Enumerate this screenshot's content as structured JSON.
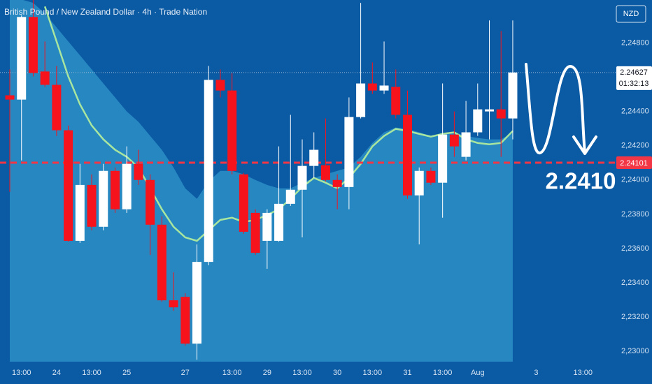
{
  "chart_data": {
    "type": "candlestick",
    "title": "British Pound / New Zealand Dollar · 4h · Trade Nation",
    "currency": "NZD",
    "categories": [
      null,
      "13:00",
      null,
      null,
      "24",
      null,
      null,
      "13:00",
      null,
      null,
      "25",
      null,
      null,
      null,
      null,
      "27",
      null,
      null,
      null,
      "13:00",
      null,
      null,
      "29",
      null,
      null,
      "13:00",
      null,
      null,
      "30",
      null,
      null,
      "13:00",
      null,
      null,
      "31",
      null,
      null,
      "13:00",
      null,
      null,
      "Aug",
      null,
      null,
      null,
      null,
      "3",
      null,
      null,
      null,
      "13:00",
      null,
      null
    ],
    "open": [
      2.24494,
      2.24469,
      2.24951,
      2.24633,
      2.24555,
      2.2429,
      2.23645,
      2.23971,
      2.23727,
      2.24053,
      2.23829,
      2.24094,
      2.24,
      2.23739,
      2.23298,
      2.23318,
      2.23045,
      2.23522,
      2.24584,
      2.24522,
      2.24033,
      2.23808,
      2.23645,
      2.23645,
      2.23861,
      2.23943,
      2.24082,
      2.24086,
      2.24,
      2.23959,
      2.24367,
      2.24563,
      2.24522,
      2.24543,
      2.2438,
      2.2391,
      2.24053,
      2.23984,
      2.24265,
      2.24135,
      2.24278,
      2.244,
      2.24412,
      2.24359,
      null,
      null,
      null,
      null,
      null,
      null,
      null,
      null
    ],
    "high": [
      2.24645,
      2.2496,
      2.25053,
      2.24808,
      2.24665,
      2.24318,
      2.24094,
      2.24033,
      2.24094,
      2.24073,
      2.24196,
      2.24176,
      2.24033,
      2.23788,
      2.23461,
      2.23339,
      2.23624,
      2.24665,
      2.24645,
      2.24624,
      2.24041,
      2.23829,
      2.23829,
      2.24196,
      2.2438,
      2.24237,
      2.24278,
      2.24359,
      2.24033,
      2.24482,
      2.25033,
      2.24686,
      2.24808,
      2.24645,
      2.24522,
      2.24073,
      2.24073,
      2.24563,
      2.244,
      2.24461,
      2.24563,
      2.24931,
      2.24869,
      2.24931,
      null,
      null,
      null,
      null,
      null,
      null,
      null,
      null
    ],
    "low": [
      2.23931,
      2.24114,
      2.24604,
      2.24543,
      2.24257,
      2.2364,
      2.23633,
      2.23706,
      2.23706,
      2.23808,
      2.23808,
      2.23971,
      2.23563,
      2.2329,
      2.23237,
      2.23033,
      2.22951,
      2.23502,
      2.24482,
      2.24033,
      2.23686,
      2.23563,
      2.23482,
      2.2364,
      2.23849,
      2.23665,
      2.24012,
      2.23992,
      2.23829,
      2.23829,
      2.24359,
      2.24502,
      2.24502,
      2.24359,
      2.2389,
      2.23624,
      2.23971,
      2.2378,
      2.24135,
      2.24114,
      2.24257,
      2.24237,
      2.24135,
      2.24237,
      null,
      null,
      null,
      null,
      null,
      null,
      null,
      null
    ],
    "close": [
      2.24469,
      2.24951,
      2.24624,
      2.24555,
      2.2429,
      2.23645,
      2.23971,
      2.23727,
      2.24053,
      2.23829,
      2.24094,
      2.24,
      2.23739,
      2.23298,
      2.23257,
      2.23045,
      2.23522,
      2.24584,
      2.24522,
      2.24053,
      2.23698,
      2.23575,
      2.23808,
      2.23861,
      2.23943,
      2.24082,
      2.24176,
      2.24,
      2.23959,
      2.24367,
      2.24563,
      2.24522,
      2.24551,
      2.2438,
      2.2391,
      2.24053,
      2.23984,
      2.24265,
      2.24196,
      2.24278,
      2.24412,
      2.24412,
      2.24359,
      2.24627,
      null,
      null,
      null,
      null,
      null,
      null,
      null,
      null
    ],
    "up_color": "#ffffff",
    "down_color": "#f7131c",
    "ma": {
      "color": "#a8e6a0",
      "values": [
        null,
        null,
        null,
        2.25012,
        2.24808,
        2.24604,
        2.24441,
        2.24318,
        2.24237,
        2.24176,
        2.24135,
        2.24073,
        2.23951,
        2.23829,
        2.23727,
        2.23665,
        2.23645,
        2.23706,
        2.23767,
        2.2378,
        2.23755,
        2.23767,
        2.23796,
        2.23829,
        2.2389,
        2.23959,
        2.24012,
        2.23984,
        2.23951,
        2.24012,
        2.24094,
        2.24196,
        2.24257,
        2.24298,
        2.24286,
        2.24269,
        2.24253,
        2.24269,
        2.24278,
        2.24237,
        2.24216,
        2.24208,
        2.24216,
        2.24286,
        null,
        null,
        null,
        null,
        null,
        null,
        null,
        null
      ]
    },
    "cloud": {
      "color": "#2b8fc7",
      "values": [
        2.25053,
        2.25053,
        2.25033,
        2.24971,
        2.2489,
        2.24808,
        2.24727,
        2.24645,
        2.24563,
        2.24482,
        2.244,
        2.24339,
        2.24257,
        2.24176,
        2.24073,
        2.23951,
        2.2389,
        2.23992,
        2.24053,
        2.24053,
        2.24033,
        2.24,
        2.23971,
        2.23951,
        2.23951,
        2.23984,
        2.24012,
        2.24033,
        2.24053,
        2.24073,
        2.24135,
        2.24216,
        2.24278,
        2.24306,
        2.24298,
        2.24278,
        2.24257,
        2.24269,
        2.24278,
        2.24257,
        2.24245,
        2.24237,
        2.24237,
        2.24278,
        null,
        null,
        null,
        null,
        null,
        null,
        null,
        null
      ]
    },
    "level": {
      "value": 2.24101,
      "label": "2.24101",
      "color": "#f23645"
    },
    "annotation": "2.2410",
    "last_price": {
      "value": 2.24627,
      "label": "2.24627"
    },
    "countdown": "01:32:13",
    "ylim": [
      2.2294,
      2.2505
    ],
    "yticks": [
      {
        "value": 2.248,
        "label": "2,24800"
      },
      {
        "value": 2.244,
        "label": "2,24400"
      },
      {
        "value": 2.242,
        "label": "2,24200"
      },
      {
        "value": 2.24,
        "label": "2,24000"
      },
      {
        "value": 2.238,
        "label": "2,23800"
      },
      {
        "value": 2.236,
        "label": "2,23600"
      },
      {
        "value": 2.234,
        "label": "2,23400"
      },
      {
        "value": 2.232,
        "label": "2,23200"
      },
      {
        "value": 2.23,
        "label": "2,23000"
      }
    ]
  }
}
